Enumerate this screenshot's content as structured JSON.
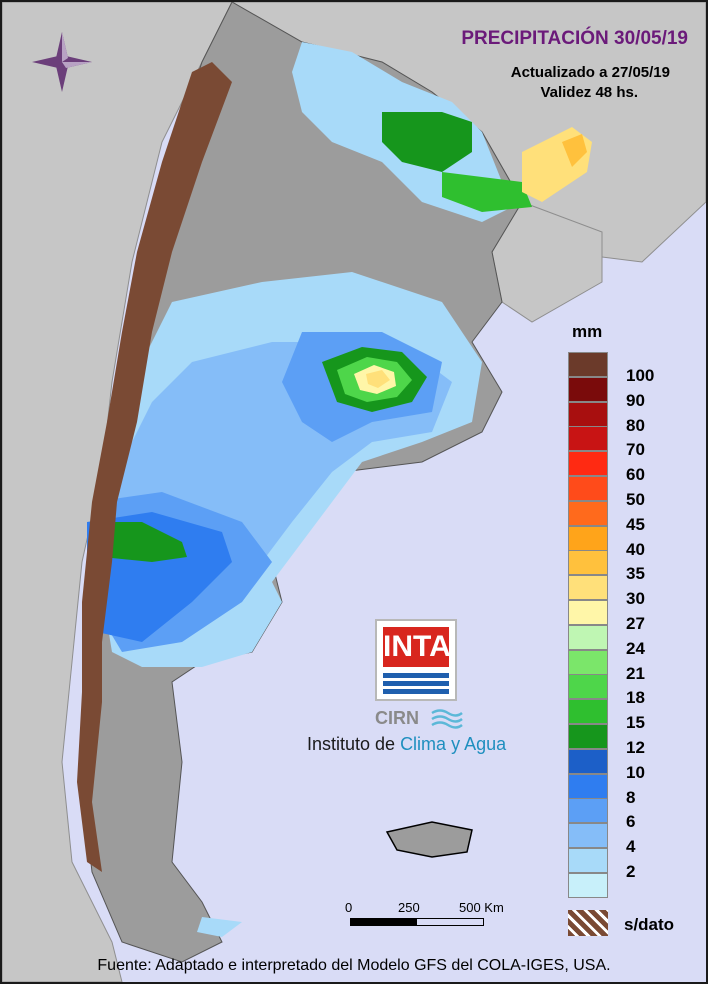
{
  "title": "PRECIPITACIÓN 30/05/19",
  "updated": "Actualizado a 27/05/19",
  "validity": "Validez 48 hs.",
  "legend": {
    "unit": "mm",
    "items": [
      {
        "label": "100",
        "color": "#6b3a2a"
      },
      {
        "label": "90",
        "color": "#7a0b0b"
      },
      {
        "label": "80",
        "color": "#a80f0f"
      },
      {
        "label": "70",
        "color": "#c81414"
      },
      {
        "label": "60",
        "color": "#ff2a12"
      },
      {
        "label": "50",
        "color": "#ff4b1a"
      },
      {
        "label": "45",
        "color": "#ff6a1c"
      },
      {
        "label": "40",
        "color": "#ffa41a"
      },
      {
        "label": "35",
        "color": "#ffc13d"
      },
      {
        "label": "30",
        "color": "#ffe07a"
      },
      {
        "label": "27",
        "color": "#fff6a8"
      },
      {
        "label": "24",
        "color": "#bff6b3"
      },
      {
        "label": "21",
        "color": "#7be66a"
      },
      {
        "label": "18",
        "color": "#4ed64a"
      },
      {
        "label": "15",
        "color": "#2fbf2f"
      },
      {
        "label": "12",
        "color": "#16961c"
      },
      {
        "label": "10",
        "color": "#1c5fc8"
      },
      {
        "label": "8",
        "color": "#2f7df0"
      },
      {
        "label": "6",
        "color": "#5c9ff5"
      },
      {
        "label": "4",
        "color": "#85bdf8"
      },
      {
        "label": "2",
        "color": "#a8daf9"
      },
      {
        "label": "",
        "color": "#c8f0fa"
      }
    ],
    "no_data_label": "s/dato",
    "no_data_color": "#7a4a34"
  },
  "scale": {
    "labels": [
      "0",
      "250",
      "500 Km"
    ]
  },
  "logo": {
    "text": "INTA",
    "cirn": "CIRN",
    "institute_prefix": "Instituto de ",
    "institute_highlight": "Clima y Agua"
  },
  "footer": "Fuente: Adaptado e interpretado del Modelo GFS del COLA-IGES, USA.",
  "colors": {
    "background": "#d9dcf6",
    "land_neighbor": "#b8b8b8",
    "title": "#6b1a7a"
  }
}
